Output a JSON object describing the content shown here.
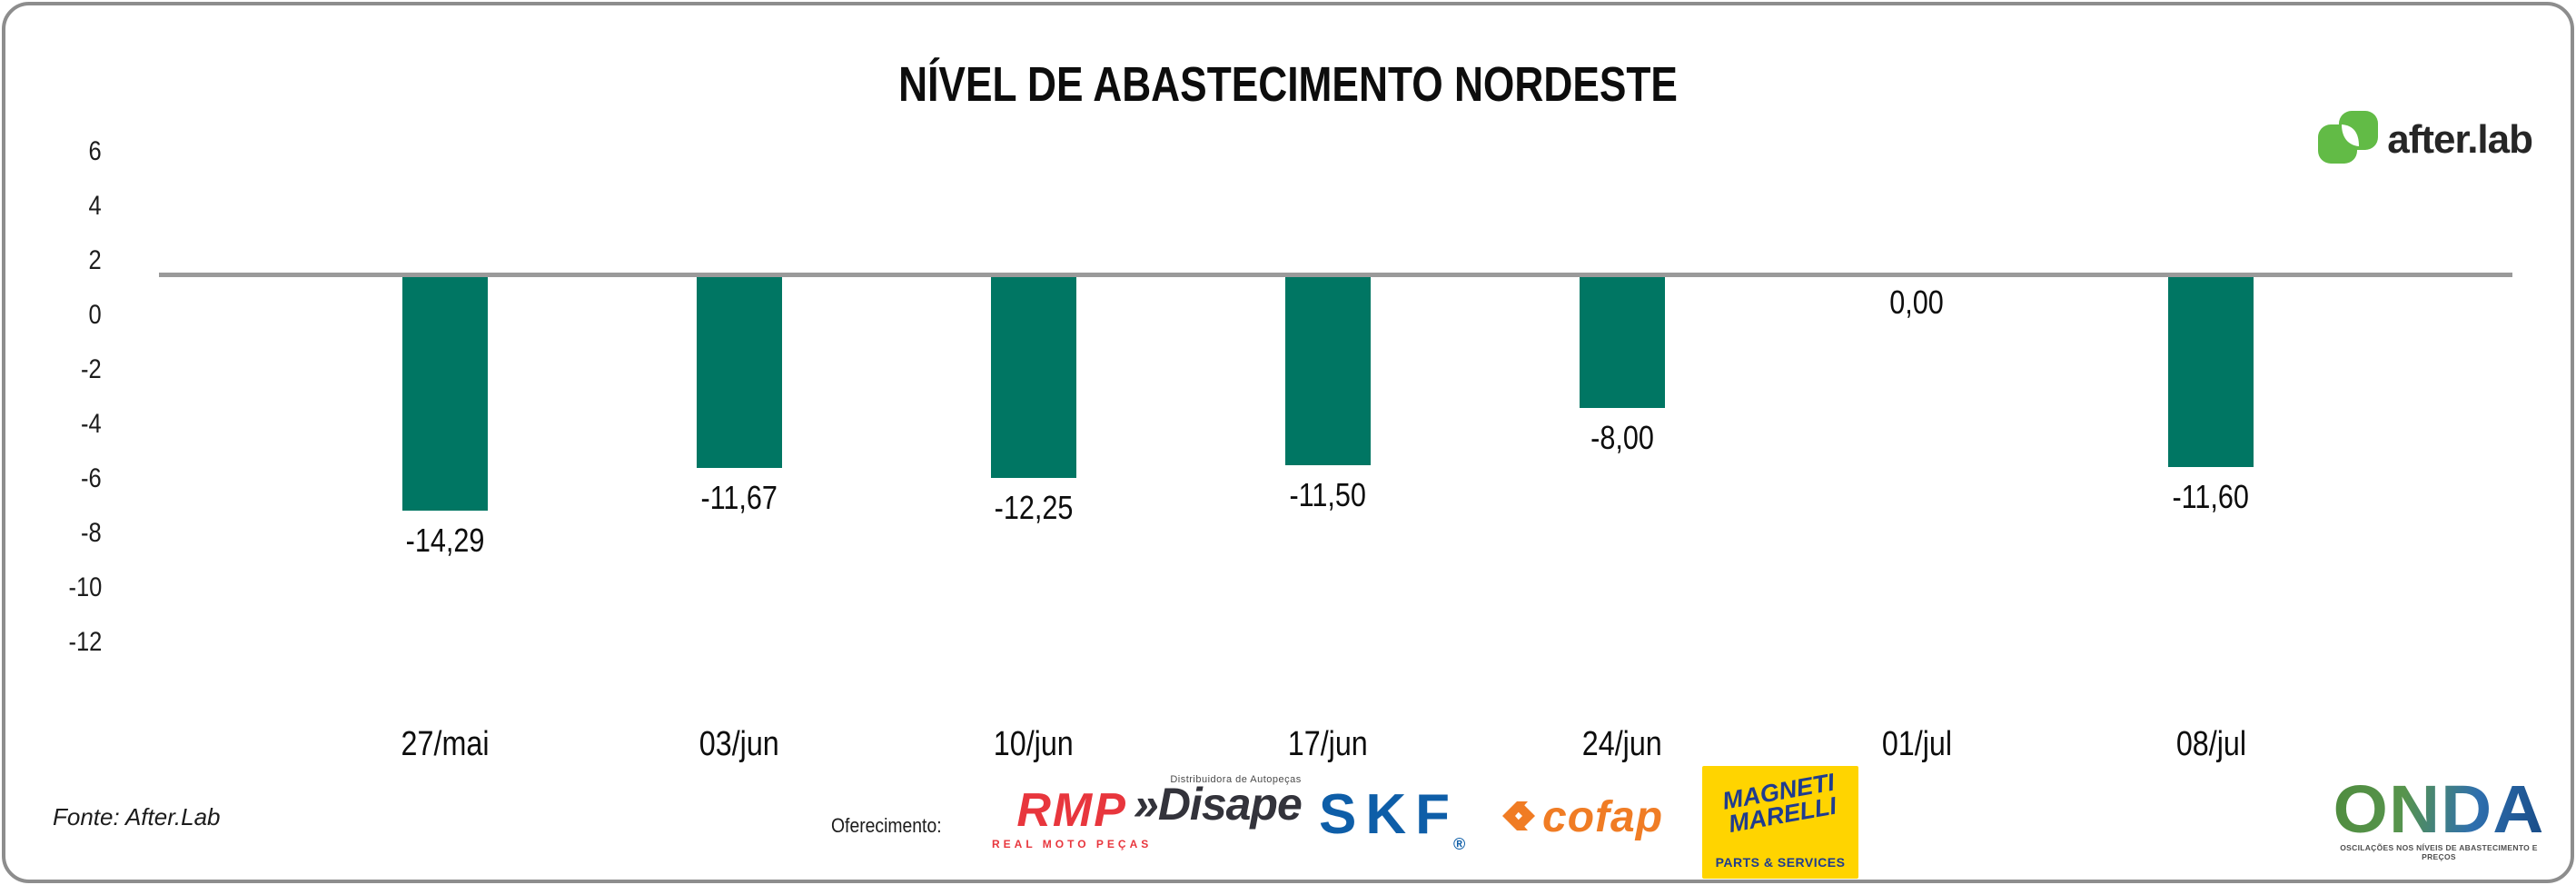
{
  "title": "NÍVEL DE ABASTECIMENTO NORDESTE",
  "brand": {
    "wordmark": "after.lab",
    "mark_color": "#62bb46",
    "text_color": "#262626"
  },
  "chart_data": {
    "type": "bar",
    "title": "NÍVEL DE ABASTECIMENTO NORDESTE",
    "categories": [
      "27/mai",
      "03/jun",
      "10/jun",
      "17/jun",
      "24/jun",
      "01/jul",
      "08/jul"
    ],
    "values": [
      -14.29,
      -11.67,
      -12.25,
      -11.5,
      -8.0,
      0.0,
      -11.6
    ],
    "value_labels": [
      "-14,29",
      "-11,67",
      "-12,25",
      "-11,50",
      "-8,00",
      "0,00",
      "-11,60"
    ],
    "yticks": [
      "6",
      "4",
      "2",
      "0",
      "-2",
      "-4",
      "-6",
      "-8",
      "-10",
      "-12"
    ],
    "ylim": [
      -12,
      6
    ],
    "xlabel": "",
    "ylabel": "",
    "grid": false,
    "legend": null,
    "bar_color": "#007663",
    "baseline_color": "#9a9a9a"
  },
  "footer": {
    "source": "Fonte: After.Lab",
    "offering_label": "Oferecimento:",
    "sponsors": {
      "rmp": {
        "name": "RMP",
        "subtitle": "REAL MOTO PEÇAS",
        "color": "#e8363d"
      },
      "disape": {
        "prefix": "»",
        "name": "Disape",
        "tagline": "Distribuidora de Autopeças",
        "color": "#33333b"
      },
      "skf": {
        "name": "SKF",
        "reg": "®",
        "color": "#0e5ea8"
      },
      "cofap": {
        "name": "cofap",
        "color": "#f07c24"
      },
      "magneti": {
        "line1": "MAGNETI",
        "line2": "MARELLI",
        "subtitle": "PARTS & SERVICES",
        "bg": "#ffd400",
        "color": "#1f3c8f"
      }
    },
    "onda": {
      "wordmark": "ONDA",
      "tagline": "OSCILAÇÕES NOS NÍVEIS DE ABASTECIMENTO E PREÇOS",
      "gradient": [
        "#4f8c3e",
        "#57944d",
        "#2f6fae",
        "#174a86"
      ]
    }
  }
}
